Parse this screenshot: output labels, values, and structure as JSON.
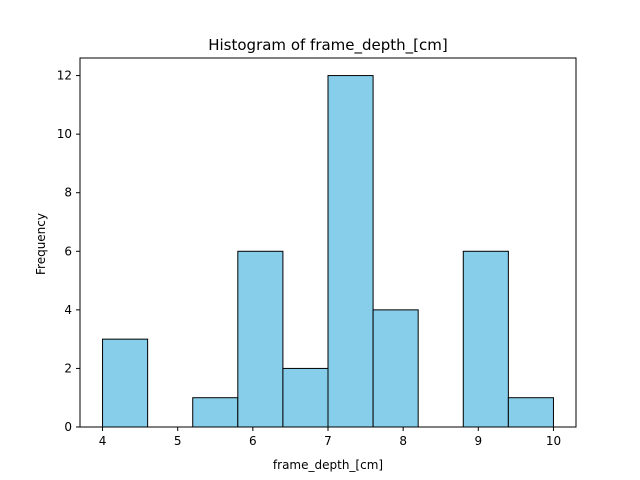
{
  "chart_data": {
    "type": "bar",
    "title": "Histogram of frame_depth_[cm]",
    "xlabel": "frame_depth_[cm]",
    "ylabel": "Frequency",
    "bin_edges": [
      4.0,
      4.6,
      5.2,
      5.8,
      6.4,
      7.0,
      7.6,
      8.2,
      8.8,
      9.4,
      10.0
    ],
    "values": [
      3,
      0,
      1,
      6,
      2,
      12,
      4,
      0,
      6,
      1
    ],
    "xlim": [
      3.7,
      10.3
    ],
    "ylim": [
      0,
      12.6
    ],
    "xticks": [
      4,
      5,
      6,
      7,
      8,
      9,
      10
    ],
    "yticks": [
      0,
      2,
      4,
      6,
      8,
      10,
      12
    ],
    "grid": false,
    "colors": {
      "bar_fill": "#87ceeb",
      "bar_edge": "#000000",
      "axes": "#000000"
    }
  }
}
